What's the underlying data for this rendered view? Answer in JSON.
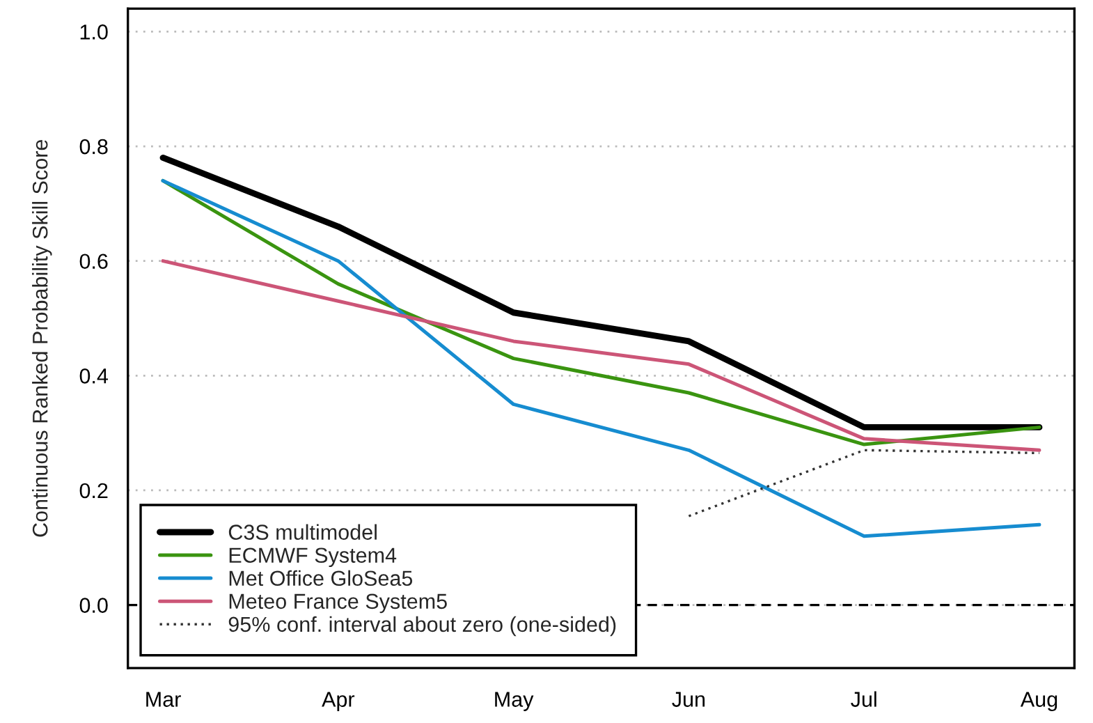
{
  "chart_data": {
    "type": "line",
    "ylabel": "Continuous Ranked Probability Skill Score",
    "categories": [
      "Mar",
      "Apr",
      "May",
      "Jun",
      "Jul",
      "Aug"
    ],
    "series": [
      {
        "name": "C3S multimodel",
        "color": "#000000",
        "values": [
          0.78,
          0.66,
          0.51,
          0.46,
          0.31,
          0.31
        ]
      },
      {
        "name": "ECMWF System4",
        "color": "#3a9410",
        "values": [
          0.74,
          0.56,
          0.43,
          0.37,
          0.28,
          0.31
        ]
      },
      {
        "name": "Met Office GloSea5",
        "color": "#168cd0",
        "values": [
          0.74,
          0.6,
          0.35,
          0.27,
          0.12,
          0.14
        ]
      },
      {
        "name": "Meteo France System5",
        "color": "#cc5577",
        "values": [
          0.6,
          0.53,
          0.46,
          0.42,
          0.29,
          0.27
        ]
      },
      {
        "name": "95% conf. interval about zero (one-sided)",
        "color": "#333333",
        "line_style": "dotted",
        "values": [
          null,
          null,
          null,
          0.155,
          0.27,
          0.265
        ]
      }
    ],
    "ylim": [
      -0.11,
      1.04
    ],
    "yticks": [
      {
        "value": 0,
        "label": "0.0"
      },
      0.2,
      0.4,
      0.6,
      0.8,
      {
        "value": 1,
        "label": "1.0"
      }
    ],
    "ref_lines": [
      {
        "axis": "y",
        "value": 0,
        "color": "#000000",
        "line_style": "dashed"
      }
    ],
    "grid": "y",
    "legend": "bottom left",
    "line_style": "solid"
  }
}
